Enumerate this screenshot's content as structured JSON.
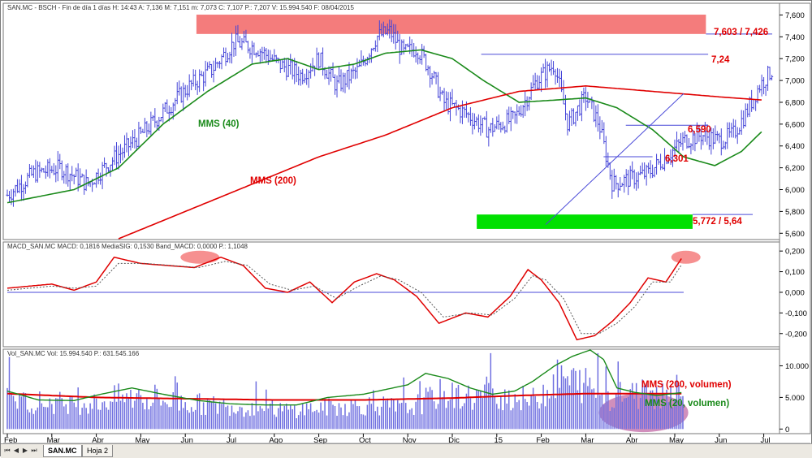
{
  "chart_data": [
    {
      "type": "ohlc",
      "panel": "price",
      "header": "SAN.MC - BSCH - Fin de día 1 días  H: 14:43  A: 7,136  M: 7,151  m: 7,073  C: 7,107  P.: 7,207  V: 15.994.540  F: 08/04/2015",
      "ylim": [
        5.55,
        7.7
      ],
      "y_ticks": [
        "5,600",
        "5,800",
        "6,000",
        "6,200",
        "6,400",
        "6,600",
        "6,800",
        "7,000",
        "7,200",
        "7,400",
        "7,600"
      ],
      "ohlc_anchors": [
        [
          0,
          5.95
        ],
        [
          0.6,
          6.15
        ],
        [
          1.2,
          6.2
        ],
        [
          1.8,
          6.05
        ],
        [
          2.3,
          6.25
        ],
        [
          3.0,
          6.5
        ],
        [
          3.6,
          6.75
        ],
        [
          4.1,
          6.95
        ],
        [
          4.6,
          7.1
        ],
        [
          5.1,
          7.35
        ],
        [
          5.6,
          7.3
        ],
        [
          6.1,
          7.15
        ],
        [
          6.6,
          7.05
        ],
        [
          7.0,
          7.2
        ],
        [
          7.4,
          6.95
        ],
        [
          7.9,
          7.1
        ],
        [
          8.3,
          7.4
        ],
        [
          8.6,
          7.45
        ],
        [
          8.9,
          7.25
        ],
        [
          9.2,
          7.3
        ],
        [
          9.5,
          7.1
        ],
        [
          9.8,
          6.8
        ],
        [
          10.3,
          6.7
        ],
        [
          10.8,
          6.55
        ],
        [
          11.4,
          6.65
        ],
        [
          11.9,
          7.0
        ],
        [
          12.3,
          7.15
        ],
        [
          12.6,
          6.6
        ],
        [
          13.0,
          6.85
        ],
        [
          13.3,
          6.6
        ],
        [
          13.6,
          6.05
        ],
        [
          14.0,
          6.1
        ],
        [
          14.4,
          6.15
        ],
        [
          14.8,
          6.3
        ],
        [
          15.2,
          6.45
        ],
        [
          15.6,
          6.5
        ],
        [
          16.0,
          6.45
        ],
        [
          16.3,
          6.5
        ],
        [
          16.6,
          6.7
        ],
        [
          16.9,
          6.95
        ],
        [
          17.2,
          7.1
        ]
      ],
      "series": [
        {
          "name": "MMS (40)",
          "color": "#1a8a1a",
          "points": [
            [
              0,
              5.88
            ],
            [
              1.5,
              6.0
            ],
            [
              2.5,
              6.2
            ],
            [
              3.5,
              6.6
            ],
            [
              4.5,
              6.9
            ],
            [
              5.5,
              7.15
            ],
            [
              6.3,
              7.2
            ],
            [
              7.0,
              7.1
            ],
            [
              7.8,
              7.15
            ],
            [
              8.5,
              7.25
            ],
            [
              9.3,
              7.28
            ],
            [
              10.0,
              7.2
            ],
            [
              10.7,
              7.0
            ],
            [
              11.5,
              6.8
            ],
            [
              12.3,
              6.82
            ],
            [
              13.0,
              6.84
            ],
            [
              13.7,
              6.75
            ],
            [
              14.5,
              6.55
            ],
            [
              15.2,
              6.3
            ],
            [
              15.9,
              6.22
            ],
            [
              16.5,
              6.35
            ],
            [
              17.0,
              6.55
            ]
          ]
        },
        {
          "name": "MMS (200)",
          "color": "#e00000",
          "points": [
            [
              2.5,
              5.55
            ],
            [
              4.0,
              5.8
            ],
            [
              5.5,
              6.05
            ],
            [
              7.0,
              6.3
            ],
            [
              8.5,
              6.5
            ],
            [
              10.0,
              6.75
            ],
            [
              11.5,
              6.9
            ],
            [
              13.0,
              6.95
            ],
            [
              14.5,
              6.9
            ],
            [
              16.0,
              6.85
            ],
            [
              17.0,
              6.82
            ]
          ]
        }
      ],
      "levels": [
        {
          "label": "7,603 / 7,426",
          "y_top": 7.603,
          "y_bottom": 7.426,
          "x_from": 4.25,
          "x_to": 15.7,
          "fill": "#f47c7c"
        },
        {
          "label": "7,24",
          "y": 7.24,
          "x_from": 10.65,
          "x_to": 15.75,
          "color": "#4a4ad8"
        },
        {
          "label": "6,590",
          "y": 6.59,
          "x_from": 13.9,
          "x_to": 15.75,
          "color": "#4a4ad8"
        },
        {
          "label": "6,301",
          "y": 6.301,
          "x_from": 13.4,
          "x_to": 14.5,
          "color": "#4a4ad8"
        },
        {
          "label": "5,772 / 5,64",
          "y_top": 5.772,
          "y_bottom": 5.64,
          "x_from": 10.55,
          "x_to": 15.4,
          "fill": "#00e000"
        }
      ],
      "trendline": {
        "x1": 12.1,
        "y1": 5.68,
        "x2": 15.2,
        "y2": 6.88,
        "color": "#4a4ad8"
      },
      "labels": {
        "mms40": "MMS (40)",
        "mms200": "MMS (200)"
      }
    },
    {
      "type": "line",
      "panel": "macd",
      "header": "MACD_SAN.MC  MACD: 0,1816  MediaSIG: 0,1530  Band_MACD: 0,0000  P.: 1,1048",
      "ylim": [
        -0.26,
        0.24
      ],
      "y_ticks": [
        "-0,200",
        "-0,100",
        "0,000",
        "0,100",
        "0,200"
      ],
      "zero_line": 0,
      "series": [
        {
          "name": "MACD",
          "color": "#e00000",
          "points": [
            [
              0,
              0.02
            ],
            [
              0.5,
              0.03
            ],
            [
              1.0,
              0.04
            ],
            [
              1.5,
              0.01
            ],
            [
              2.0,
              0.05
            ],
            [
              2.4,
              0.17
            ],
            [
              3.0,
              0.14
            ],
            [
              3.6,
              0.13
            ],
            [
              4.2,
              0.12
            ],
            [
              4.8,
              0.17
            ],
            [
              5.3,
              0.13
            ],
            [
              5.8,
              0.02
            ],
            [
              6.3,
              0.0
            ],
            [
              6.8,
              0.05
            ],
            [
              7.3,
              -0.05
            ],
            [
              7.8,
              0.05
            ],
            [
              8.3,
              0.09
            ],
            [
              8.7,
              0.06
            ],
            [
              9.2,
              -0.02
            ],
            [
              9.7,
              -0.15
            ],
            [
              10.3,
              -0.1
            ],
            [
              10.8,
              -0.12
            ],
            [
              11.3,
              -0.02
            ],
            [
              11.7,
              0.11
            ],
            [
              12.0,
              0.06
            ],
            [
              12.4,
              -0.05
            ],
            [
              12.8,
              -0.23
            ],
            [
              13.2,
              -0.21
            ],
            [
              13.6,
              -0.14
            ],
            [
              14.0,
              -0.05
            ],
            [
              14.4,
              0.07
            ],
            [
              14.8,
              0.05
            ],
            [
              15.2,
              0.18
            ]
          ]
        },
        {
          "name": "MediaSIG",
          "color": "#555555",
          "dashed": true,
          "points": [
            [
              0,
              0.01
            ],
            [
              0.5,
              0.02
            ],
            [
              1.0,
              0.03
            ],
            [
              1.5,
              0.02
            ],
            [
              2.0,
              0.03
            ],
            [
              2.5,
              0.14
            ],
            [
              3.1,
              0.14
            ],
            [
              3.7,
              0.13
            ],
            [
              4.3,
              0.12
            ],
            [
              4.9,
              0.15
            ],
            [
              5.4,
              0.13
            ],
            [
              5.9,
              0.04
            ],
            [
              6.4,
              0.01
            ],
            [
              6.9,
              0.03
            ],
            [
              7.4,
              -0.03
            ],
            [
              7.9,
              0.03
            ],
            [
              8.4,
              0.08
            ],
            [
              8.8,
              0.06
            ],
            [
              9.3,
              0.0
            ],
            [
              9.8,
              -0.12
            ],
            [
              10.4,
              -0.1
            ],
            [
              10.9,
              -0.11
            ],
            [
              11.4,
              -0.03
            ],
            [
              11.8,
              0.08
            ],
            [
              12.1,
              0.06
            ],
            [
              12.5,
              -0.03
            ],
            [
              12.9,
              -0.2
            ],
            [
              13.3,
              -0.2
            ],
            [
              13.7,
              -0.15
            ],
            [
              14.1,
              -0.07
            ],
            [
              14.5,
              0.05
            ],
            [
              14.9,
              0.05
            ],
            [
              15.2,
              0.15
            ]
          ]
        }
      ]
    },
    {
      "type": "bar",
      "panel": "volume",
      "header": "Vol_SAN.MC  Vol: 15.994.540  P.: 631.545.166",
      "ylim": [
        -0.6,
        12.5
      ],
      "y_ticks": [
        "0",
        "5.000",
        "10.000"
      ],
      "bar_color": "#6f6fe0",
      "volume_anchors": [
        [
          0,
          4.5
        ],
        [
          1.0,
          4.2
        ],
        [
          2.0,
          4.0
        ],
        [
          2.5,
          5.0
        ],
        [
          3.5,
          4.5
        ],
        [
          4.5,
          3.8
        ],
        [
          5.3,
          3.5
        ],
        [
          6.3,
          3.0
        ],
        [
          7.3,
          3.5
        ],
        [
          8.3,
          3.8
        ],
        [
          9.0,
          3.2
        ],
        [
          9.7,
          5.5
        ],
        [
          10.3,
          5.0
        ],
        [
          11.0,
          5.5
        ],
        [
          11.8,
          4.5
        ],
        [
          12.4,
          8.0
        ],
        [
          13.0,
          7.0
        ],
        [
          13.6,
          5.0
        ],
        [
          14.3,
          5.5
        ],
        [
          15.0,
          5.8
        ],
        [
          15.2,
          6.0
        ]
      ],
      "series": [
        {
          "name": "MMS (200, volumen)",
          "color": "#e00000",
          "points": [
            [
              0,
              5.6
            ],
            [
              2.0,
              5.0
            ],
            [
              4.0,
              4.8
            ],
            [
              6.0,
              4.6
            ],
            [
              8.0,
              4.6
            ],
            [
              10.0,
              4.9
            ],
            [
              11.5,
              5.3
            ],
            [
              13.0,
              5.6
            ],
            [
              15.2,
              5.6
            ]
          ]
        },
        {
          "name": "MMS (20, volumen)",
          "color": "#1a8a1a",
          "points": [
            [
              0,
              6.0
            ],
            [
              0.7,
              4.6
            ],
            [
              1.5,
              4.5
            ],
            [
              2.1,
              5.5
            ],
            [
              2.8,
              6.5
            ],
            [
              3.5,
              5.5
            ],
            [
              4.3,
              4.5
            ],
            [
              5.0,
              4.0
            ],
            [
              5.8,
              3.8
            ],
            [
              6.5,
              3.8
            ],
            [
              7.2,
              5.0
            ],
            [
              8.0,
              5.5
            ],
            [
              9.0,
              7.0
            ],
            [
              9.4,
              8.8
            ],
            [
              9.9,
              8.0
            ],
            [
              10.4,
              6.5
            ],
            [
              10.9,
              5.5
            ],
            [
              11.4,
              6.0
            ],
            [
              11.8,
              7.5
            ],
            [
              12.3,
              10.0
            ],
            [
              12.7,
              11.5
            ],
            [
              13.1,
              12.5
            ],
            [
              13.4,
              11.0
            ],
            [
              13.7,
              6.5
            ],
            [
              14.1,
              5.8
            ],
            [
              14.6,
              5.3
            ],
            [
              15.2,
              5.8
            ]
          ]
        }
      ],
      "labels": {
        "mms200vol": "MMS (200, volumen)",
        "mms20vol": "MMS (20, volumen)"
      }
    }
  ],
  "x_axis": {
    "months": [
      "Feb",
      "Mar",
      "Abr",
      "May",
      "Jun",
      "Jul",
      "Ago",
      "Sep",
      "Oct",
      "Nov",
      "Dic",
      "15",
      "Feb",
      "Mar",
      "Abr",
      "May",
      "Jun",
      "Jul"
    ]
  },
  "tabs": {
    "items": [
      "SAN.MC",
      "Hoja 2"
    ]
  }
}
